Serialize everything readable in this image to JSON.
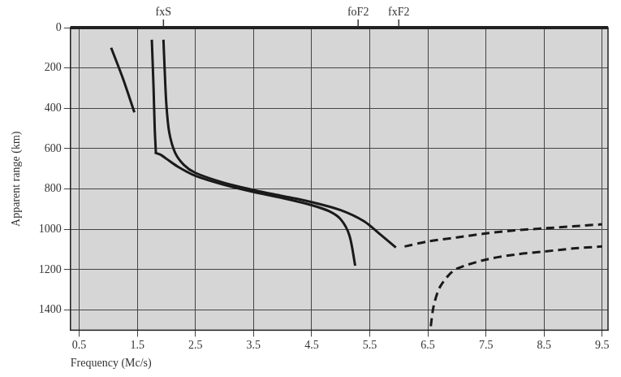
{
  "chart_data": {
    "type": "line",
    "x_label": "Frequency (Mc/s)",
    "y_label": "Apparent range (km)",
    "xlim": [
      0.35,
      9.6
    ],
    "xticks": [
      0.5,
      1.5,
      2.5,
      3.5,
      4.5,
      5.5,
      6.5,
      7.5,
      8.5,
      9.5
    ],
    "ylim": [
      0,
      1500
    ],
    "yticks": [
      0,
      200,
      400,
      600,
      800,
      1000,
      1200,
      1400
    ],
    "grid": true,
    "annotations": [
      {
        "text": "fxS",
        "x": 1.95
      },
      {
        "text": "foF2",
        "x": 5.3
      },
      {
        "text": "fxF2",
        "x": 6.0
      }
    ],
    "series": [
      {
        "color": "#1a1a1a",
        "line_style": "solid",
        "x": [
          1.95,
          1.97,
          2.0,
          2.05,
          2.15,
          2.3,
          2.5,
          3.0,
          3.5,
          4.0,
          4.5,
          5.0,
          5.4,
          5.7,
          5.95
        ],
        "values": [
          60,
          200,
          380,
          520,
          620,
          680,
          720,
          770,
          805,
          835,
          865,
          905,
          960,
          1030,
          1090
        ]
      },
      {
        "color": "#1a1a1a",
        "line_style": "solid",
        "x": [
          1.8,
          1.9,
          2.0,
          2.2,
          2.5,
          3.0,
          3.5,
          4.0,
          4.5,
          4.8,
          5.0,
          5.15,
          5.25
        ],
        "values": [
          620,
          630,
          650,
          690,
          735,
          780,
          815,
          845,
          880,
          910,
          950,
          1030,
          1180
        ]
      },
      {
        "color": "#1a1a1a",
        "line_style": "solid",
        "x": [
          1.75,
          1.78,
          1.8,
          1.82
        ],
        "values": [
          60,
          300,
          500,
          620
        ]
      },
      {
        "color": "#1a1a1a",
        "line_style": "solid",
        "x": [
          1.05,
          1.25,
          1.45
        ],
        "values": [
          100,
          250,
          420
        ]
      },
      {
        "color": "#1a1a1a",
        "line_style": "dashed",
        "x": [
          6.1,
          6.5,
          7.0,
          7.5,
          8.0,
          8.5,
          9.0,
          9.5
        ],
        "values": [
          1085,
          1060,
          1040,
          1020,
          1005,
          995,
          985,
          975
        ]
      },
      {
        "color": "#1a1a1a",
        "line_style": "dashed",
        "x": [
          6.55,
          6.6,
          6.7,
          6.85,
          7.0,
          7.5,
          8.0,
          8.5,
          9.0,
          9.5
        ],
        "values": [
          1480,
          1380,
          1290,
          1230,
          1195,
          1150,
          1125,
          1110,
          1095,
          1085
        ]
      }
    ]
  }
}
